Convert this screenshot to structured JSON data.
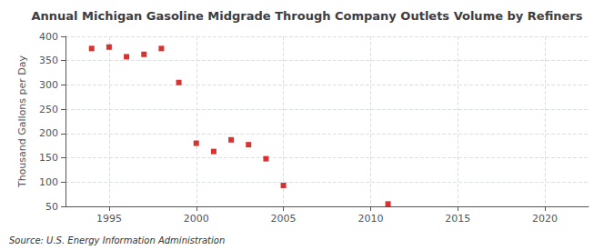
{
  "chart_data": {
    "type": "scatter",
    "title": "Annual Michigan Gasoline Midgrade Through Company Outlets Volume by Refiners",
    "ylabel": "Thousand Gallons per Day",
    "annotation": "Source: U.S. Energy Information Administration",
    "x": [
      1994,
      1995,
      1996,
      1997,
      1998,
      1999,
      2000,
      2001,
      2002,
      2003,
      2004,
      2005,
      2011
    ],
    "values": [
      375,
      378,
      358,
      363,
      375,
      305,
      180,
      163,
      187,
      177,
      148,
      93,
      55
    ],
    "color": "#cc0000",
    "marker": "square",
    "xlim": [
      1992.5,
      2022.5
    ],
    "ylim": [
      50,
      400
    ],
    "xticks": [
      1995,
      2000,
      2005,
      2010,
      2015,
      2020
    ],
    "yticks": [
      50,
      100,
      150,
      200,
      250,
      300,
      350,
      400
    ],
    "grid": true
  }
}
